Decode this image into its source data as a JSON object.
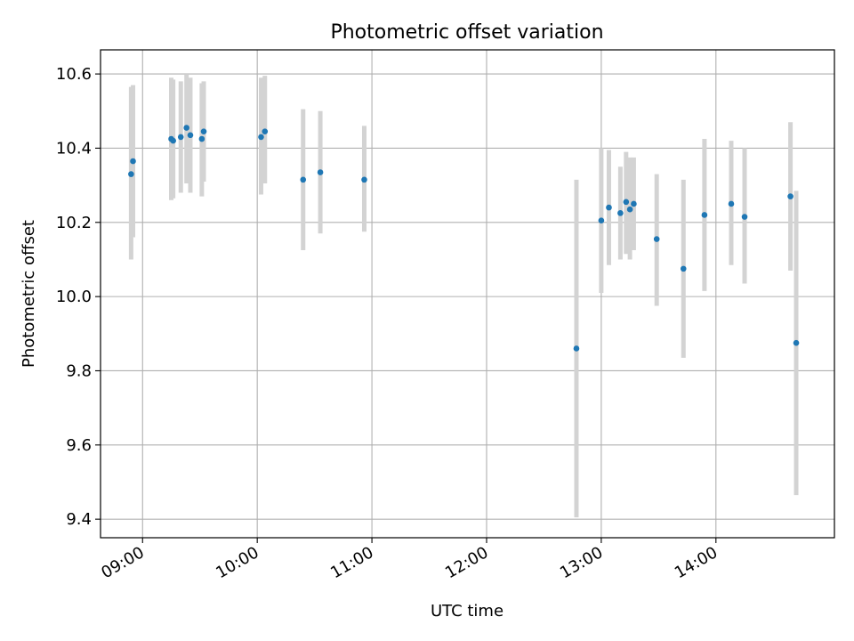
{
  "chart_data": {
    "type": "scatter",
    "title": "Photometric offset variation",
    "xlabel": "UTC time",
    "ylabel": "Photometric offset",
    "xlim": [
      "08:38",
      "15:02"
    ],
    "ylim": [
      9.35,
      10.665
    ],
    "x_ticks": [
      "09:00",
      "10:00",
      "11:00",
      "12:00",
      "13:00",
      "14:00"
    ],
    "y_ticks": [
      "9.4",
      "9.6",
      "9.8",
      "10.0",
      "10.2",
      "10.4",
      "10.6"
    ],
    "grid": true,
    "legend": "none",
    "point_color": "#1f77b4",
    "errorbar_color": "#d3d3d3",
    "points": [
      {
        "x": "08:54",
        "y": 10.33,
        "lo": 10.1,
        "hi": 10.565
      },
      {
        "x": "08:55",
        "y": 10.365,
        "lo": 10.16,
        "hi": 10.57
      },
      {
        "x": "09:15",
        "y": 10.425,
        "lo": 10.26,
        "hi": 10.59
      },
      {
        "x": "09:16",
        "y": 10.42,
        "lo": 10.265,
        "hi": 10.585
      },
      {
        "x": "09:20",
        "y": 10.43,
        "lo": 10.28,
        "hi": 10.58
      },
      {
        "x": "09:23",
        "y": 10.455,
        "lo": 10.305,
        "hi": 10.6
      },
      {
        "x": "09:25",
        "y": 10.435,
        "lo": 10.28,
        "hi": 10.59
      },
      {
        "x": "09:31",
        "y": 10.425,
        "lo": 10.27,
        "hi": 10.575
      },
      {
        "x": "09:32",
        "y": 10.445,
        "lo": 10.31,
        "hi": 10.58
      },
      {
        "x": "10:02",
        "y": 10.43,
        "lo": 10.275,
        "hi": 10.59
      },
      {
        "x": "10:04",
        "y": 10.445,
        "lo": 10.305,
        "hi": 10.595
      },
      {
        "x": "10:24",
        "y": 10.315,
        "lo": 10.125,
        "hi": 10.505
      },
      {
        "x": "10:33",
        "y": 10.335,
        "lo": 10.17,
        "hi": 10.5
      },
      {
        "x": "10:56",
        "y": 10.315,
        "lo": 10.175,
        "hi": 10.46
      },
      {
        "x": "12:47",
        "y": 9.86,
        "lo": 9.405,
        "hi": 10.315
      },
      {
        "x": "13:00",
        "y": 10.205,
        "lo": 10.01,
        "hi": 10.4
      },
      {
        "x": "13:04",
        "y": 10.24,
        "lo": 10.085,
        "hi": 10.395
      },
      {
        "x": "13:10",
        "y": 10.225,
        "lo": 10.1,
        "hi": 10.35
      },
      {
        "x": "13:13",
        "y": 10.255,
        "lo": 10.115,
        "hi": 10.39
      },
      {
        "x": "13:15",
        "y": 10.235,
        "lo": 10.1,
        "hi": 10.375
      },
      {
        "x": "13:17",
        "y": 10.25,
        "lo": 10.125,
        "hi": 10.375
      },
      {
        "x": "13:29",
        "y": 10.155,
        "lo": 9.975,
        "hi": 10.33
      },
      {
        "x": "13:43",
        "y": 10.075,
        "lo": 9.835,
        "hi": 10.315
      },
      {
        "x": "13:54",
        "y": 10.22,
        "lo": 10.015,
        "hi": 10.425
      },
      {
        "x": "14:08",
        "y": 10.25,
        "lo": 10.085,
        "hi": 10.42
      },
      {
        "x": "14:15",
        "y": 10.215,
        "lo": 10.035,
        "hi": 10.4
      },
      {
        "x": "14:39",
        "y": 10.27,
        "lo": 10.07,
        "hi": 10.47
      },
      {
        "x": "14:42",
        "y": 9.875,
        "lo": 9.465,
        "hi": 10.285
      }
    ]
  }
}
